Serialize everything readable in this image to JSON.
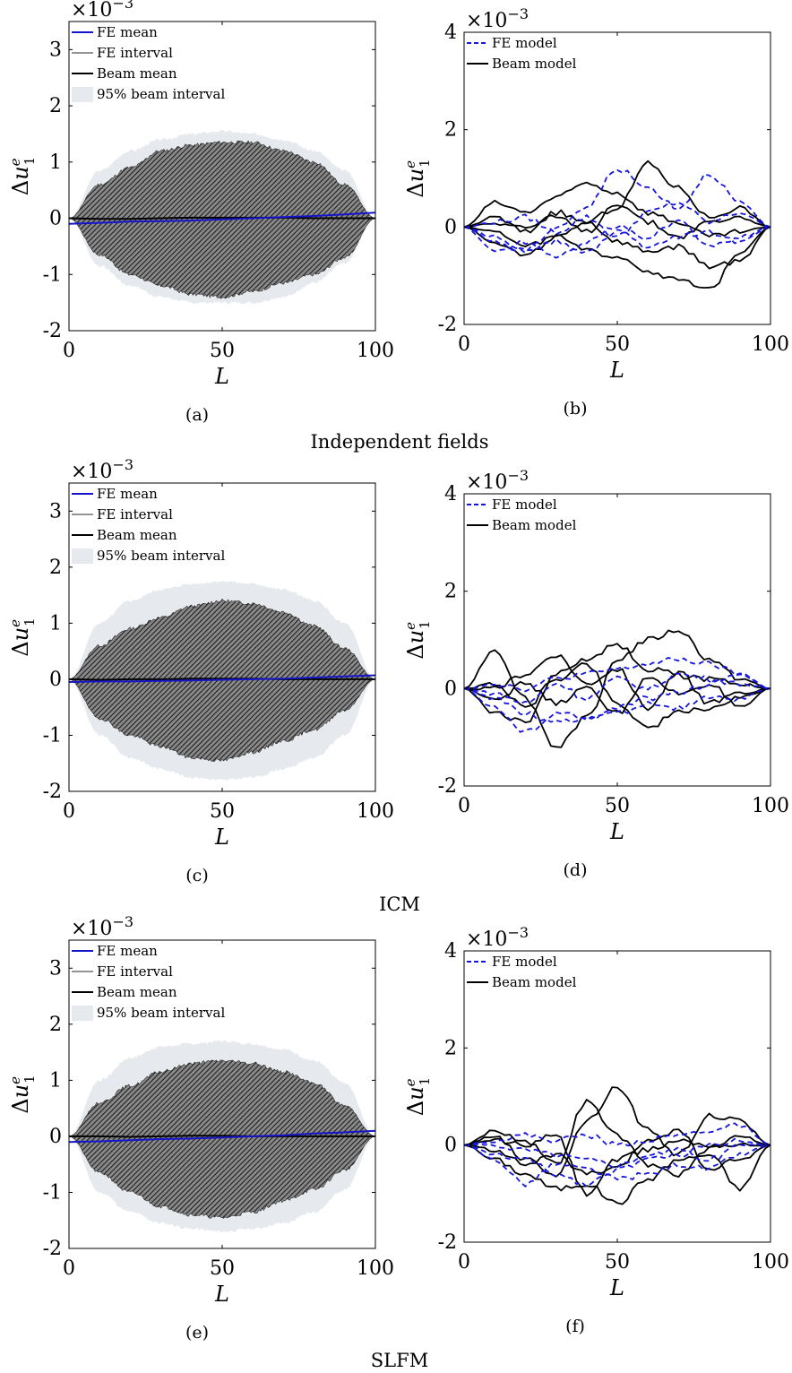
{
  "figure": {
    "row_titles": [
      "Independent fields",
      "ICM",
      "SLFM"
    ]
  },
  "chart_data": [
    {
      "id": "a",
      "type": "area",
      "caption": "(a)",
      "xlabel": "L",
      "ylabel_base": "Δu",
      "ylabel_sup": "e",
      "ylabel_sub": "1",
      "exponent_base": "×10",
      "exponent_power": "−3",
      "xlim": [
        0,
        100
      ],
      "ylim": [
        -2,
        3.5
      ],
      "xticks": [
        "0",
        "50",
        "100"
      ],
      "yticks": [
        "-2",
        "-1",
        "0",
        "1",
        "2",
        "3"
      ],
      "grid": false,
      "legend_position": "top-left",
      "legend": [
        "FE mean",
        "FE interval",
        "Beam mean",
        "95% beam interval"
      ],
      "colors": {
        "fe_mean": "#1515cc",
        "fe_interval": "#2a2a2a",
        "beam_mean": "#000000",
        "beam_interval": "#e6e9ed"
      },
      "x": [
        0,
        10,
        20,
        30,
        40,
        50,
        60,
        70,
        80,
        90,
        100
      ],
      "beam_interval_upper": [
        0,
        0.85,
        1.2,
        1.4,
        1.5,
        1.55,
        1.5,
        1.4,
        1.2,
        0.85,
        0
      ],
      "beam_interval_lower": [
        0,
        -0.85,
        -1.2,
        -1.4,
        -1.5,
        -1.5,
        -1.5,
        -1.4,
        -1.15,
        -0.8,
        0
      ],
      "fe_interval_upper": [
        0,
        0.6,
        0.9,
        1.2,
        1.3,
        1.35,
        1.35,
        1.2,
        1.0,
        0.6,
        0
      ],
      "fe_interval_lower": [
        0,
        -0.65,
        -1.0,
        -1.2,
        -1.35,
        -1.4,
        -1.3,
        -1.15,
        -1.0,
        -0.7,
        0
      ],
      "fe_mean": [
        -0.1,
        -0.08,
        -0.06,
        -0.05,
        -0.04,
        -0.02,
        0.0,
        0.02,
        0.04,
        0.07,
        0.1
      ],
      "beam_mean": [
        0,
        -0.01,
        -0.01,
        0,
        0.01,
        0.01,
        0.01,
        0.01,
        0,
        0,
        0
      ]
    },
    {
      "id": "b",
      "type": "line",
      "caption": "(b)",
      "xlabel": "L",
      "ylabel_base": "Δu",
      "ylabel_sup": "e",
      "ylabel_sub": "1",
      "exponent_base": "×10",
      "exponent_power": "−3",
      "xlim": [
        0,
        100
      ],
      "ylim": [
        -2,
        4
      ],
      "xticks": [
        "0",
        "50",
        "100"
      ],
      "yticks": [
        "-2",
        "0",
        "2",
        "4"
      ],
      "grid": false,
      "legend_position": "top-left",
      "legend": [
        "FE model",
        "Beam model"
      ],
      "colors": {
        "fe": "#1515dd",
        "beam": "#000000"
      },
      "x": [
        0,
        10,
        20,
        30,
        40,
        50,
        60,
        70,
        80,
        90,
        100
      ],
      "series": [
        {
          "group": "beam",
          "values": [
            0,
            0.2,
            -0.1,
            0.3,
            0.1,
            0.4,
            1.3,
            0.8,
            0.2,
            0.4,
            0
          ]
        },
        {
          "group": "beam",
          "values": [
            0,
            -0.3,
            -0.6,
            -0.2,
            -0.5,
            -0.6,
            -0.9,
            -1.1,
            -1.3,
            -0.5,
            0
          ]
        },
        {
          "group": "beam",
          "values": [
            0,
            0.5,
            0.3,
            0.6,
            0.9,
            0.7,
            0.3,
            0.1,
            -0.2,
            -0.1,
            0
          ]
        },
        {
          "group": "beam",
          "values": [
            0,
            -0.1,
            -0.4,
            -0.2,
            0.1,
            -0.3,
            -0.5,
            -0.4,
            -0.8,
            -0.7,
            0
          ]
        },
        {
          "group": "beam",
          "values": [
            0,
            0.1,
            0.0,
            0.2,
            -0.1,
            0.5,
            0.1,
            -0.2,
            0.1,
            0.2,
            0
          ]
        },
        {
          "group": "fe",
          "values": [
            0,
            -0.2,
            -0.5,
            0.0,
            0.4,
            1.2,
            0.8,
            0.4,
            1.1,
            0.5,
            0
          ]
        },
        {
          "group": "fe",
          "values": [
            0,
            -0.5,
            -0.3,
            -0.6,
            -0.3,
            0.0,
            -0.2,
            0.1,
            -0.4,
            -0.2,
            0
          ]
        },
        {
          "group": "fe",
          "values": [
            0,
            0.1,
            0.2,
            -0.1,
            0.2,
            -0.2,
            0.3,
            0.5,
            0.1,
            0.3,
            0
          ]
        },
        {
          "group": "fe",
          "values": [
            0,
            -0.3,
            -0.5,
            -0.3,
            -0.5,
            -0.1,
            -0.4,
            -0.2,
            -0.1,
            -0.3,
            0
          ]
        }
      ]
    },
    {
      "id": "c",
      "type": "area",
      "caption": "(c)",
      "xlabel": "L",
      "ylabel_base": "Δu",
      "ylabel_sup": "e",
      "ylabel_sub": "1",
      "exponent_base": "×10",
      "exponent_power": "−3",
      "xlim": [
        0,
        100
      ],
      "ylim": [
        -2,
        3.5
      ],
      "xticks": [
        "0",
        "50",
        "100"
      ],
      "yticks": [
        "-2",
        "-1",
        "0",
        "1",
        "2",
        "3"
      ],
      "grid": false,
      "legend_position": "top-left",
      "legend": [
        "FE mean",
        "FE interval",
        "Beam mean",
        "95% beam interval"
      ],
      "colors": {
        "fe_mean": "#1515cc",
        "fe_interval": "#2a2a2a",
        "beam_mean": "#000000",
        "beam_interval": "#e6e9ed"
      },
      "x": [
        0,
        10,
        20,
        30,
        40,
        50,
        60,
        70,
        80,
        90,
        100
      ],
      "beam_interval_upper": [
        0,
        1.0,
        1.4,
        1.6,
        1.7,
        1.75,
        1.7,
        1.6,
        1.4,
        1.0,
        0
      ],
      "beam_interval_lower": [
        0,
        -1.0,
        -1.4,
        -1.6,
        -1.75,
        -1.8,
        -1.75,
        -1.6,
        -1.4,
        -1.0,
        0
      ],
      "fe_interval_upper": [
        0,
        0.6,
        0.9,
        1.1,
        1.3,
        1.4,
        1.35,
        1.2,
        0.95,
        0.55,
        0
      ],
      "fe_interval_lower": [
        0,
        -0.7,
        -1.0,
        -1.2,
        -1.4,
        -1.45,
        -1.3,
        -1.1,
        -0.9,
        -0.55,
        0
      ],
      "fe_mean": [
        -0.05,
        -0.04,
        -0.04,
        -0.03,
        -0.02,
        -0.01,
        0.0,
        0.01,
        0.03,
        0.05,
        0.07
      ],
      "beam_mean": [
        0,
        -0.01,
        0,
        0,
        0.01,
        0.01,
        0.01,
        0,
        0,
        0,
        0
      ]
    },
    {
      "id": "d",
      "type": "line",
      "caption": "(d)",
      "xlabel": "L",
      "ylabel_base": "Δu",
      "ylabel_sup": "e",
      "ylabel_sub": "1",
      "exponent_base": "×10",
      "exponent_power": "−3",
      "xlim": [
        0,
        100
      ],
      "ylim": [
        -2,
        4
      ],
      "xticks": [
        "0",
        "50",
        "100"
      ],
      "yticks": [
        "-2",
        "0",
        "2",
        "4"
      ],
      "grid": false,
      "legend_position": "top-left",
      "legend": [
        "FE model",
        "Beam model"
      ],
      "colors": {
        "fe": "#1515dd",
        "beam": "#000000"
      },
      "x": [
        0,
        10,
        20,
        30,
        40,
        50,
        60,
        70,
        80,
        90,
        100
      ],
      "series": [
        {
          "group": "beam",
          "values": [
            0,
            0.8,
            -0.2,
            -1.2,
            -0.6,
            0.6,
            1.0,
            1.2,
            0.6,
            0.2,
            0
          ]
        },
        {
          "group": "beam",
          "values": [
            0,
            0.1,
            -0.4,
            0.2,
            0.5,
            -0.3,
            -0.8,
            -0.5,
            -0.4,
            -0.2,
            0
          ]
        },
        {
          "group": "beam",
          "values": [
            0,
            -0.5,
            -0.7,
            0.3,
            0.6,
            0.9,
            0.4,
            0.3,
            -0.3,
            -0.1,
            0
          ]
        },
        {
          "group": "beam",
          "values": [
            0,
            -0.2,
            0.1,
            -0.3,
            0.0,
            -0.5,
            0.2,
            -0.1,
            0.1,
            -0.4,
            0
          ]
        },
        {
          "group": "beam",
          "values": [
            0,
            0.0,
            0.3,
            0.7,
            0.1,
            0.4,
            -0.4,
            0.3,
            0.2,
            0.1,
            0
          ]
        },
        {
          "group": "fe",
          "values": [
            0,
            -0.2,
            -0.5,
            -0.7,
            -0.6,
            -0.4,
            -0.2,
            -0.1,
            0.1,
            0.3,
            0
          ]
        },
        {
          "group": "fe",
          "values": [
            0,
            0.1,
            0.0,
            0.2,
            0.3,
            0.4,
            0.5,
            0.6,
            0.5,
            0.3,
            0
          ]
        },
        {
          "group": "fe",
          "values": [
            0,
            -0.4,
            -0.9,
            -0.5,
            -0.6,
            -0.5,
            -0.3,
            -0.4,
            -0.2,
            -0.2,
            0
          ]
        },
        {
          "group": "fe",
          "values": [
            0,
            -0.1,
            -0.3,
            0.1,
            -0.2,
            0.2,
            0.0,
            0.3,
            0.2,
            0.1,
            0
          ]
        }
      ]
    },
    {
      "id": "e",
      "type": "area",
      "caption": "(e)",
      "xlabel": "L",
      "ylabel_base": "Δu",
      "ylabel_sup": "e",
      "ylabel_sub": "1",
      "exponent_base": "×10",
      "exponent_power": "−3",
      "xlim": [
        0,
        100
      ],
      "ylim": [
        -2,
        3.5
      ],
      "xticks": [
        "0",
        "50",
        "100"
      ],
      "yticks": [
        "-2",
        "-1",
        "0",
        "1",
        "2",
        "3"
      ],
      "grid": false,
      "legend_position": "top-left",
      "legend": [
        "FE mean",
        "FE interval",
        "Beam mean",
        "95% beam interval"
      ],
      "colors": {
        "fe_mean": "#1515cc",
        "fe_interval": "#2a2a2a",
        "beam_mean": "#000000",
        "beam_interval": "#e6e9ed"
      },
      "x": [
        0,
        10,
        20,
        30,
        40,
        50,
        60,
        70,
        80,
        90,
        100
      ],
      "beam_interval_upper": [
        0,
        1.0,
        1.4,
        1.6,
        1.65,
        1.7,
        1.65,
        1.55,
        1.35,
        0.95,
        0
      ],
      "beam_interval_lower": [
        0,
        -1.0,
        -1.35,
        -1.55,
        -1.65,
        -1.7,
        -1.65,
        -1.55,
        -1.35,
        -0.95,
        0
      ],
      "fe_interval_upper": [
        0,
        0.6,
        0.9,
        1.15,
        1.3,
        1.35,
        1.3,
        1.15,
        0.95,
        0.55,
        0
      ],
      "fe_interval_lower": [
        0,
        -0.65,
        -1.0,
        -1.25,
        -1.4,
        -1.45,
        -1.35,
        -1.15,
        -0.95,
        -0.6,
        0
      ],
      "fe_mean": [
        -0.1,
        -0.09,
        -0.07,
        -0.05,
        -0.04,
        -0.02,
        0.0,
        0.02,
        0.05,
        0.07,
        0.1
      ],
      "beam_mean": [
        0,
        0,
        -0.01,
        0,
        0.01,
        0.01,
        0,
        0,
        0,
        0,
        0
      ]
    },
    {
      "id": "f",
      "type": "line",
      "caption": "(f)",
      "xlabel": "L",
      "ylabel_base": "Δu",
      "ylabel_sup": "e",
      "ylabel_sub": "1",
      "exponent_base": "×10",
      "exponent_power": "−3",
      "xlim": [
        0,
        100
      ],
      "ylim": [
        -2,
        4
      ],
      "xticks": [
        "0",
        "50",
        "100"
      ],
      "yticks": [
        "-2",
        "0",
        "2",
        "4"
      ],
      "grid": false,
      "legend_position": "top-left",
      "legend": [
        "FE model",
        "Beam model"
      ],
      "colors": {
        "fe": "#1515dd",
        "beam": "#000000"
      },
      "x": [
        0,
        10,
        20,
        30,
        40,
        50,
        60,
        70,
        80,
        90,
        100
      ],
      "series": [
        {
          "group": "beam",
          "values": [
            0,
            0.2,
            -0.3,
            -0.6,
            0.5,
            1.2,
            0.3,
            -0.2,
            0.6,
            0.5,
            0
          ]
        },
        {
          "group": "beam",
          "values": [
            0,
            -0.3,
            -0.6,
            -0.9,
            -0.8,
            -1.2,
            -0.7,
            -0.3,
            -0.2,
            -0.9,
            0
          ]
        },
        {
          "group": "beam",
          "values": [
            0,
            0.3,
            0.1,
            -0.4,
            0.9,
            0.2,
            -0.4,
            -0.6,
            -0.1,
            0.2,
            0
          ]
        },
        {
          "group": "beam",
          "values": [
            0,
            -0.1,
            -0.4,
            -0.2,
            -0.6,
            -0.5,
            0.1,
            0.3,
            -0.5,
            -0.3,
            0
          ]
        },
        {
          "group": "beam",
          "values": [
            0,
            0.1,
            0.0,
            0.2,
            -1.0,
            -0.3,
            -0.1,
            0.1,
            0.0,
            0.0,
            0
          ]
        },
        {
          "group": "fe",
          "values": [
            0,
            -0.3,
            -0.8,
            -0.4,
            -0.5,
            -0.7,
            -0.6,
            -0.4,
            -0.5,
            -0.2,
            0
          ]
        },
        {
          "group": "fe",
          "values": [
            0,
            0.1,
            0.2,
            0.1,
            0.2,
            0.0,
            0.1,
            0.2,
            0.3,
            0.4,
            0
          ]
        },
        {
          "group": "fe",
          "values": [
            0,
            -0.2,
            -0.3,
            -0.6,
            -0.8,
            -0.5,
            -0.3,
            -0.2,
            0.0,
            0.1,
            0
          ]
        },
        {
          "group": "fe",
          "values": [
            0,
            0.0,
            -0.1,
            -0.2,
            -0.3,
            -0.4,
            -0.2,
            -0.1,
            -0.3,
            0.0,
            0
          ]
        }
      ]
    }
  ]
}
